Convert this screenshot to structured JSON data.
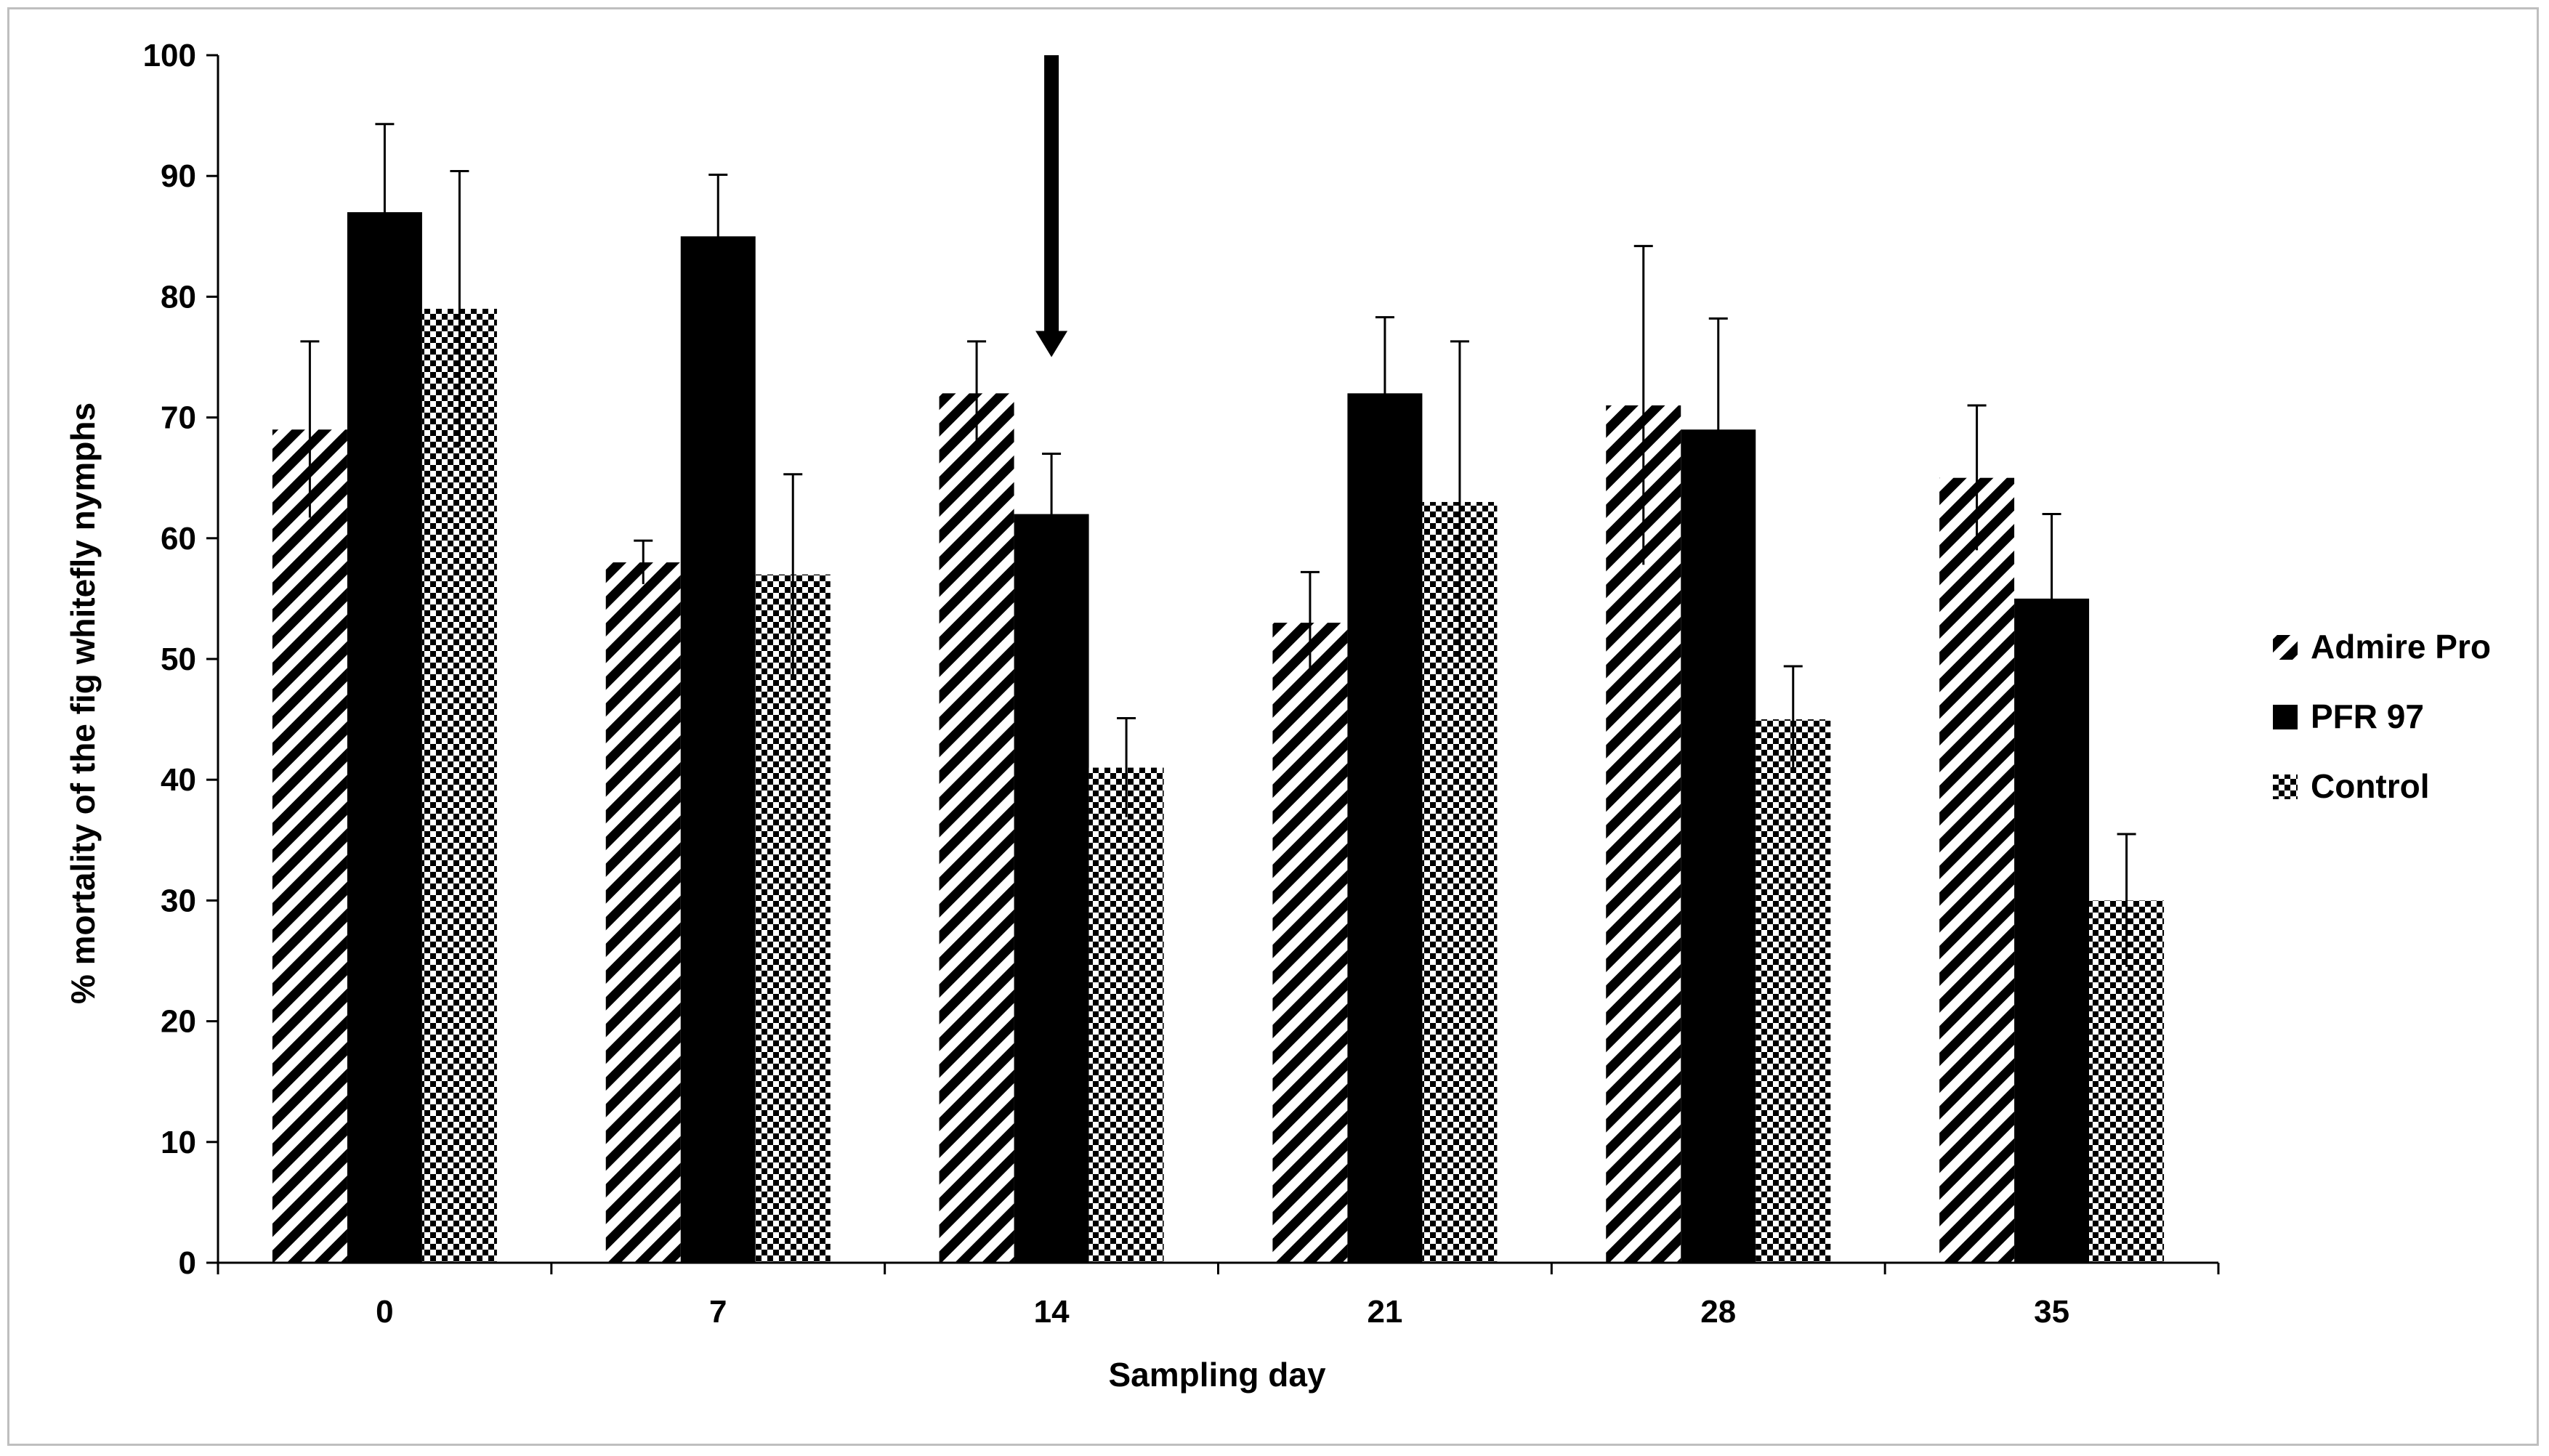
{
  "chart_data": {
    "type": "bar",
    "title": "",
    "xlabel": "Sampling day",
    "ylabel": "% mortality of the fig whitefly nymphs",
    "ylim": [
      0,
      100
    ],
    "yticks": [
      0,
      10,
      20,
      30,
      40,
      50,
      60,
      70,
      80,
      90,
      100
    ],
    "grid": false,
    "legend_position": "right",
    "categories": [
      "0",
      "7",
      "14",
      "21",
      "28",
      "35"
    ],
    "series": [
      {
        "name": "Admire Pro",
        "pattern": "diagonal-stripes",
        "values": [
          69,
          58,
          72,
          53,
          71,
          65
        ],
        "errors": [
          7.3,
          1.8,
          4.3,
          4.2,
          13.2,
          6.0
        ]
      },
      {
        "name": "PFR 97",
        "pattern": "solid",
        "values": [
          87,
          85,
          62,
          72,
          69,
          55
        ],
        "errors": [
          7.3,
          5.1,
          5.0,
          6.3,
          9.2,
          7.0
        ]
      },
      {
        "name": "Control",
        "pattern": "checkerboard",
        "values": [
          79,
          57,
          41,
          63,
          45,
          30
        ],
        "errors": [
          11.4,
          8.3,
          4.1,
          13.3,
          4.4,
          5.5
        ]
      }
    ],
    "annotations": [
      {
        "type": "arrow",
        "category": "14",
        "from_value": 100,
        "to_value": 75,
        "direction": "down"
      }
    ],
    "colors": {
      "bar": "#000000",
      "background": "#ffffff",
      "axis": "#000000",
      "frame": "#bfbfbf"
    }
  }
}
